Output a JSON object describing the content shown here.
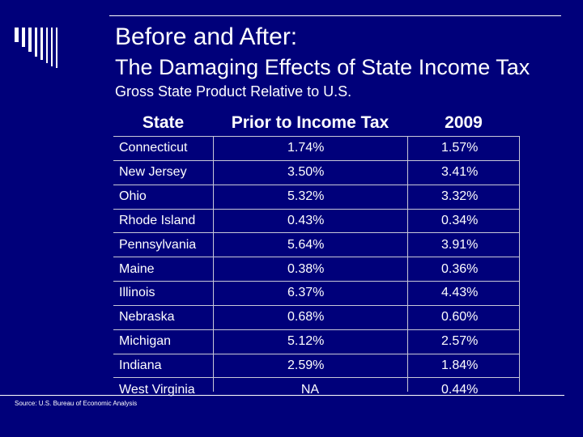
{
  "slide": {
    "title_line1": "Before and After:",
    "title_line2": "The Damaging Effects of State Income Tax",
    "subtitle": "Gross State Product Relative to U.S.",
    "source": "Source: U.S. Bureau of Economic Analysis"
  },
  "table": {
    "headers": [
      "State",
      "Prior to Income Tax",
      "2009"
    ],
    "rows": [
      [
        "Connecticut",
        "1.74%",
        "1.57%"
      ],
      [
        "New Jersey",
        "3.50%",
        "3.41%"
      ],
      [
        "Ohio",
        "5.32%",
        "3.32%"
      ],
      [
        "Rhode Island",
        "0.43%",
        "0.34%"
      ],
      [
        "Pennsylvania",
        "5.64%",
        "3.91%"
      ],
      [
        "Maine",
        "0.38%",
        "0.36%"
      ],
      [
        "Illinois",
        "6.37%",
        "4.43%"
      ],
      [
        "Nebraska",
        "0.68%",
        "0.60%"
      ],
      [
        "Michigan",
        "5.12%",
        "2.57%"
      ],
      [
        "Indiana",
        "2.59%",
        "1.84%"
      ],
      [
        "West Virginia",
        "NA",
        "0.44%"
      ]
    ]
  },
  "colors": {
    "background": "#00007a",
    "text": "#ffffff",
    "grid": "#c8c8d8"
  }
}
